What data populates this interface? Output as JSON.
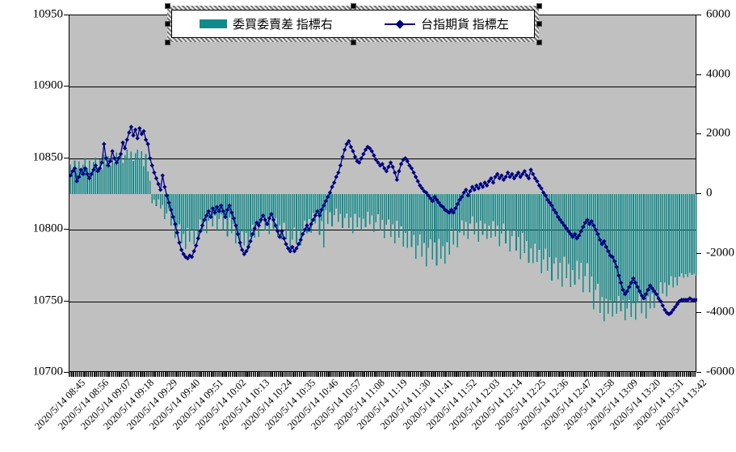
{
  "legend": {
    "selected": true,
    "items": [
      {
        "label": "委買委賣差 指標右",
        "swatch": "bar"
      },
      {
        "label": "台指期貨 指標左",
        "swatch": "line-diamond"
      }
    ]
  },
  "colors": {
    "bar": "#0f8b8b",
    "line": "#000080",
    "plot_bg": "#c0c0c0",
    "grid": "#000000",
    "text": "#000000"
  },
  "chart_data": {
    "type": "combo",
    "title": "",
    "plot_bg": "#c0c0c0",
    "legend_position": "top",
    "grid": "horizontal-left-axis",
    "y_axis_left": {
      "min": 10700,
      "max": 10950,
      "tick_labels": [
        "10950",
        "10900",
        "10850",
        "10800",
        "10750",
        "10700"
      ],
      "tick_values": [
        10950,
        10900,
        10850,
        10800,
        10750,
        10700
      ]
    },
    "y_axis_right": {
      "min": -6000,
      "max": 6000,
      "tick_labels": [
        "6000",
        "4000",
        "2000",
        "0",
        "-2000",
        "-4000",
        "-6000"
      ],
      "tick_values": [
        6000,
        4000,
        2000,
        0,
        -2000,
        -4000,
        -6000
      ]
    },
    "gridline_values_left": [
      10900,
      10850,
      10800,
      10750
    ],
    "x_axis": {
      "n_points": 300,
      "interval_minutes": 1,
      "first_point": "2020/5/14 08:45",
      "label_every_n": 11,
      "tick_labels": [
        "2020/5/14 08:45",
        "2020/5/14 08:56",
        "2020/5/14 09:07",
        "2020/5/14 09:18",
        "2020/5/14 09:29",
        "2020/5/14 09:40",
        "2020/5/14 09:51",
        "2020/5/14 10:02",
        "2020/5/14 10:13",
        "2020/5/14 10:24",
        "2020/5/14 10:35",
        "2020/5/14 10:46",
        "2020/5/14 10:57",
        "2020/5/14 11:08",
        "2020/5/14 11:19",
        "2020/5/14 11:30",
        "2020/5/14 11:41",
        "2020/5/14 11:52",
        "2020/5/14 12:03",
        "2020/5/14 12:14",
        "2020/5/14 12:25",
        "2020/5/14 12:36",
        "2020/5/14 12:47",
        "2020/5/14 12:58",
        "2020/5/14 13:09",
        "2020/5/14 13:20",
        "2020/5/14 13:31",
        "2020/5/14 13:42"
      ]
    },
    "series": [
      {
        "name": "委買委賣差 指標右",
        "type": "bar",
        "axis": "right",
        "color": "#0f8b8b",
        "envelope_keyframes": [
          [
            0,
            900,
            250
          ],
          [
            10,
            1000,
            250
          ],
          [
            20,
            1150,
            250
          ],
          [
            28,
            1300,
            220
          ],
          [
            34,
            1350,
            200
          ],
          [
            37,
            900,
            400
          ],
          [
            38,
            300,
            250
          ],
          [
            39,
            -200,
            150
          ],
          [
            42,
            -350,
            200
          ],
          [
            46,
            -700,
            300
          ],
          [
            50,
            -1100,
            400
          ],
          [
            54,
            -1500,
            350
          ],
          [
            58,
            -1450,
            400
          ],
          [
            62,
            -1200,
            400
          ],
          [
            66,
            -950,
            350
          ],
          [
            70,
            -900,
            350
          ],
          [
            74,
            -1000,
            350
          ],
          [
            78,
            -1250,
            400
          ],
          [
            82,
            -1650,
            450
          ],
          [
            86,
            -1500,
            400
          ],
          [
            90,
            -1100,
            350
          ],
          [
            94,
            -950,
            350
          ],
          [
            98,
            -1050,
            400
          ],
          [
            102,
            -1350,
            450
          ],
          [
            106,
            -1600,
            450
          ],
          [
            110,
            -1350,
            400
          ],
          [
            114,
            -1000,
            350
          ],
          [
            118,
            -850,
            300
          ],
          [
            121,
            -1300,
            900
          ],
          [
            123,
            -900,
            400
          ],
          [
            126,
            -750,
            300
          ],
          [
            130,
            -850,
            300
          ],
          [
            134,
            -950,
            350
          ],
          [
            138,
            -1000,
            350
          ],
          [
            142,
            -900,
            350
          ],
          [
            146,
            -1000,
            350
          ],
          [
            150,
            -1100,
            400
          ],
          [
            154,
            -1200,
            400
          ],
          [
            158,
            -1350,
            450
          ],
          [
            162,
            -1600,
            500
          ],
          [
            166,
            -1800,
            500
          ],
          [
            170,
            -1950,
            500
          ],
          [
            174,
            -1850,
            500
          ],
          [
            178,
            -2050,
            500
          ],
          [
            181,
            -1700,
            600
          ],
          [
            184,
            -1500,
            450
          ],
          [
            188,
            -1200,
            400
          ],
          [
            192,
            -1050,
            400
          ],
          [
            196,
            -1250,
            400
          ],
          [
            200,
            -1200,
            400
          ],
          [
            204,
            -1350,
            450
          ],
          [
            208,
            -1450,
            450
          ],
          [
            212,
            -1550,
            450
          ],
          [
            216,
            -1750,
            500
          ],
          [
            220,
            -2000,
            500
          ],
          [
            224,
            -2200,
            500
          ],
          [
            228,
            -2350,
            500
          ],
          [
            232,
            -2500,
            500
          ],
          [
            236,
            -2600,
            550
          ],
          [
            240,
            -2750,
            550
          ],
          [
            244,
            -2700,
            600
          ],
          [
            248,
            -3000,
            650
          ],
          [
            252,
            -3500,
            650
          ],
          [
            256,
            -3900,
            420
          ],
          [
            260,
            -3750,
            450
          ],
          [
            264,
            -3850,
            430
          ],
          [
            268,
            -3950,
            380
          ],
          [
            272,
            -3700,
            450
          ],
          [
            276,
            -3800,
            400
          ],
          [
            280,
            -3400,
            450
          ],
          [
            284,
            -3200,
            350
          ],
          [
            288,
            -3000,
            300
          ],
          [
            292,
            -2750,
            120
          ],
          [
            296,
            -2700,
            60
          ],
          [
            299,
            -2700,
            50
          ]
        ],
        "variation_pattern": [
          0.35,
          -0.55,
          0.85,
          -0.25,
          0.65,
          -0.85,
          0.15,
          0.95,
          -0.45,
          0.55,
          -0.95,
          0.25,
          0.75,
          -0.65,
          0.45,
          -1.0,
          0.9,
          -0.35,
          0.6,
          -0.75
        ]
      },
      {
        "name": "台指期貨 指標左",
        "type": "line",
        "axis": "left",
        "marker": "diamond",
        "color": "#000080",
        "values": [
          10838,
          10841,
          10843,
          10834,
          10837,
          10842,
          10839,
          10843,
          10839,
          10836,
          10839,
          10842,
          10845,
          10841,
          10843,
          10847,
          10860,
          10850,
          10845,
          10848,
          10855,
          10850,
          10847,
          10850,
          10853,
          10861,
          10857,
          10863,
          10868,
          10872,
          10866,
          10870,
          10864,
          10871,
          10867,
          10869,
          10863,
          10860,
          10850,
          10845,
          10840,
          10836,
          10832,
          10828,
          10838,
          10830,
          10824,
          10819,
          10814,
          10809,
          10804,
          10798,
          10791,
          10786,
          10783,
          10781,
          10780,
          10782,
          10781,
          10785,
          10789,
          10794,
          10799,
          10803,
          10807,
          10810,
          10813,
          10809,
          10815,
          10812,
          10816,
          10813,
          10817,
          10813,
          10809,
          10814,
          10817,
          10812,
          10808,
          10803,
          10797,
          10791,
          10786,
          10783,
          10785,
          10788,
          10792,
          10797,
          10801,
          10805,
          10803,
          10807,
          10810,
          10807,
          10804,
          10808,
          10811,
          10807,
          10803,
          10799,
          10795,
          10799,
          10794,
          10790,
          10787,
          10785,
          10788,
          10785,
          10787,
          10790,
          10793,
          10797,
          10800,
          10803,
          10800,
          10804,
          10807,
          10810,
          10813,
          10810,
          10814,
          10817,
          10820,
          10823,
          10826,
          10830,
          10833,
          10837,
          10840,
          10845,
          10851,
          10856,
          10860,
          10862,
          10858,
          10855,
          10851,
          10848,
          10847,
          10850,
          10853,
          10856,
          10858,
          10857,
          10855,
          10852,
          10849,
          10847,
          10845,
          10846,
          10843,
          10841,
          10844,
          10847,
          10844,
          10840,
          10835,
          10841,
          10846,
          10849,
          10850,
          10848,
          10845,
          10843,
          10840,
          10837,
          10834,
          10831,
          10829,
          10827,
          10826,
          10824,
          10822,
          10820,
          10823,
          10821,
          10819,
          10817,
          10816,
          10814,
          10813,
          10812,
          10814,
          10812,
          10815,
          10818,
          10821,
          10823,
          10826,
          10828,
          10824,
          10827,
          10830,
          10828,
          10831,
          10829,
          10832,
          10830,
          10833,
          10831,
          10834,
          10836,
          10833,
          10837,
          10839,
          10836,
          10838,
          10835,
          10837,
          10840,
          10837,
          10839,
          10836,
          10838,
          10840,
          10837,
          10839,
          10841,
          10838,
          10836,
          10842,
          10839,
          10836,
          10834,
          10831,
          10829,
          10826,
          10824,
          10821,
          10819,
          10817,
          10814,
          10812,
          10809,
          10807,
          10805,
          10803,
          10801,
          10799,
          10797,
          10795,
          10797,
          10794,
          10796,
          10799,
          10802,
          10805,
          10807,
          10804,
          10806,
          10803,
          10800,
          10797,
          10793,
          10790,
          10792,
          10788,
          10785,
          10782,
          10781,
          10778,
          10774,
          10768,
          10763,
          10758,
          10755,
          10757,
          10760,
          10763,
          10766,
          10763,
          10760,
          10757,
          10754,
          10752,
          10755,
          10758,
          10761,
          10759,
          10757,
          10755,
          10752,
          10750,
          10747,
          10744,
          10742,
          10741,
          10742,
          10744,
          10746,
          10748,
          10750,
          10751,
          10751,
          10751,
          10751,
          10752,
          10751,
          10751,
          10751
        ]
      }
    ]
  }
}
